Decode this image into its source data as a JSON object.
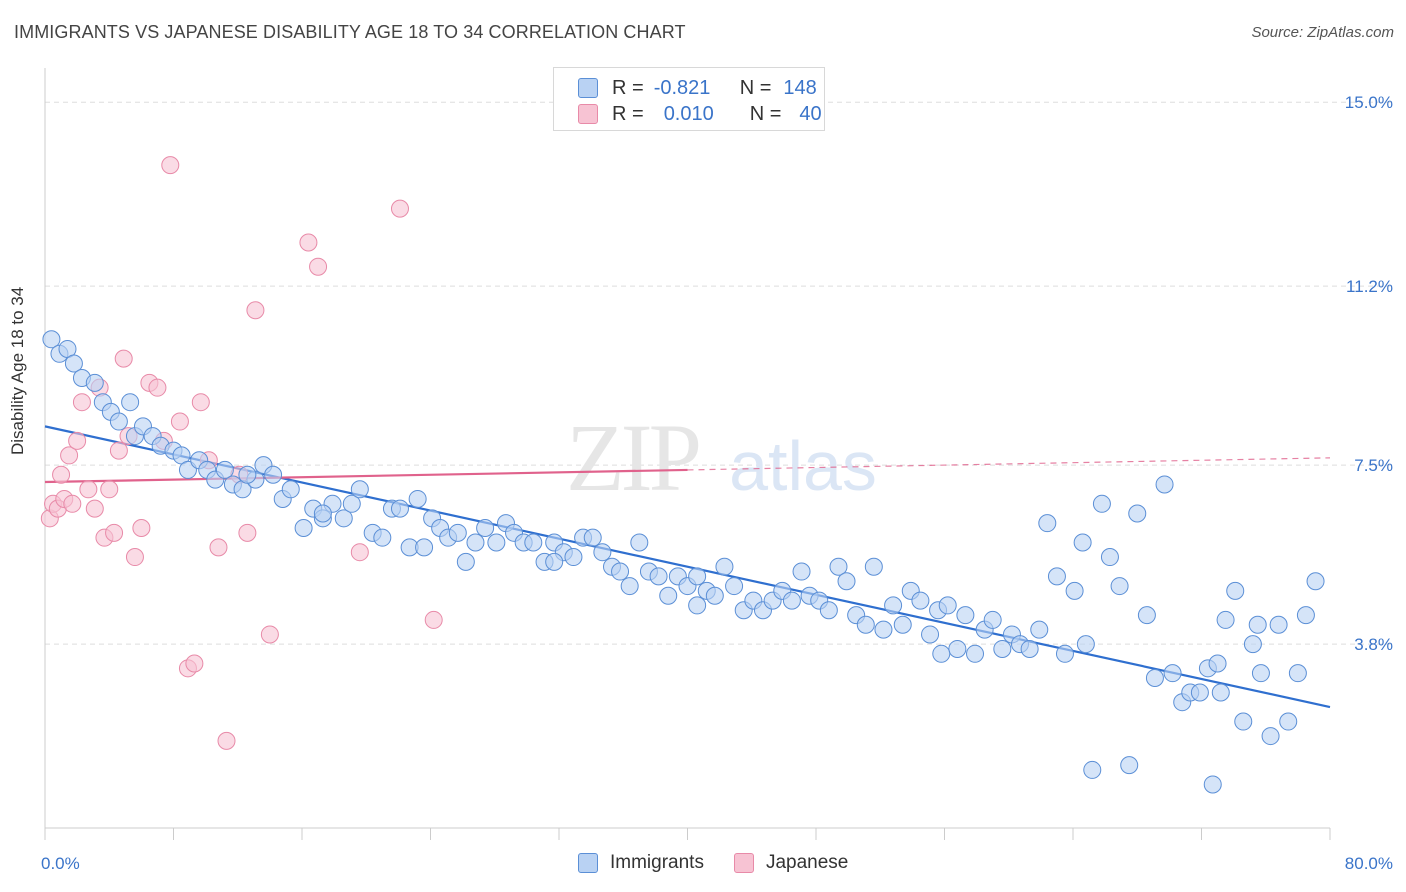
{
  "title": "IMMIGRANTS VS JAPANESE DISABILITY AGE 18 TO 34 CORRELATION CHART",
  "source": "Source: ZipAtlas.com",
  "watermark": {
    "zip": "ZIP",
    "atlas": "atlas"
  },
  "legend": {
    "immigrants": {
      "r_label": "R =",
      "r_value": "-0.821",
      "n_label": "N =",
      "n_value": "148"
    },
    "japanese": {
      "r_label": "R =",
      "r_value": "0.010",
      "n_label": "N =",
      "n_value": "40"
    }
  },
  "colors": {
    "immigrants_fill": "#b9d2f3",
    "immigrants_stroke": "#5b8fd6",
    "immigrants_line": "#2f6fcf",
    "japanese_fill": "#f7c3d3",
    "japanese_stroke": "#e88aa8",
    "japanese_line": "#e0628c",
    "axis_text": "#3a74c9",
    "grid": "#dddddd"
  },
  "chart_data": {
    "type": "scatter",
    "title": "IMMIGRANTS VS JAPANESE DISABILITY AGE 18 TO 34 CORRELATION CHART",
    "xlabel": "",
    "ylabel": "Disability Age 18 to 34",
    "xlim": [
      0,
      80
    ],
    "ylim": [
      0,
      15.5
    ],
    "x_tick_labels": [
      "0.0%",
      "80.0%"
    ],
    "y_ticks": [
      3.8,
      7.5,
      11.2,
      15.0
    ],
    "y_tick_labels": [
      "3.8%",
      "7.5%",
      "11.2%",
      "15.0%"
    ],
    "series": [
      {
        "name": "Immigrants",
        "trend": {
          "x": [
            0,
            80
          ],
          "y": [
            8.3,
            2.5
          ],
          "solid_until": 80
        },
        "points": [
          [
            0.4,
            10.1
          ],
          [
            0.9,
            9.8
          ],
          [
            1.4,
            9.9
          ],
          [
            1.8,
            9.6
          ],
          [
            2.3,
            9.3
          ],
          [
            3.1,
            9.2
          ],
          [
            3.6,
            8.8
          ],
          [
            4.1,
            8.6
          ],
          [
            4.6,
            8.4
          ],
          [
            5.3,
            8.8
          ],
          [
            5.6,
            8.1
          ],
          [
            6.1,
            8.3
          ],
          [
            6.7,
            8.1
          ],
          [
            7.2,
            7.9
          ],
          [
            8.0,
            7.8
          ],
          [
            8.5,
            7.7
          ],
          [
            8.9,
            7.4
          ],
          [
            9.6,
            7.6
          ],
          [
            10.1,
            7.4
          ],
          [
            10.6,
            7.2
          ],
          [
            11.2,
            7.4
          ],
          [
            11.7,
            7.1
          ],
          [
            12.3,
            7.0
          ],
          [
            13.1,
            7.2
          ],
          [
            13.6,
            7.5
          ],
          [
            14.2,
            7.3
          ],
          [
            14.8,
            6.8
          ],
          [
            15.3,
            7.0
          ],
          [
            16.1,
            6.2
          ],
          [
            16.7,
            6.6
          ],
          [
            17.3,
            6.4
          ],
          [
            17.9,
            6.7
          ],
          [
            18.6,
            6.4
          ],
          [
            19.1,
            6.7
          ],
          [
            19.6,
            7.0
          ],
          [
            20.4,
            6.1
          ],
          [
            21.0,
            6.0
          ],
          [
            21.6,
            6.6
          ],
          [
            22.1,
            6.6
          ],
          [
            22.7,
            5.8
          ],
          [
            23.2,
            6.8
          ],
          [
            24.1,
            6.4
          ],
          [
            24.6,
            6.2
          ],
          [
            25.1,
            6.0
          ],
          [
            25.7,
            6.1
          ],
          [
            26.2,
            5.5
          ],
          [
            26.8,
            5.9
          ],
          [
            27.4,
            6.2
          ],
          [
            28.1,
            5.9
          ],
          [
            28.7,
            6.3
          ],
          [
            29.2,
            6.1
          ],
          [
            29.8,
            5.9
          ],
          [
            30.4,
            5.9
          ],
          [
            31.1,
            5.5
          ],
          [
            31.7,
            5.9
          ],
          [
            32.3,
            5.7
          ],
          [
            32.9,
            5.6
          ],
          [
            33.5,
            6.0
          ],
          [
            34.1,
            6.0
          ],
          [
            34.7,
            5.7
          ],
          [
            35.3,
            5.4
          ],
          [
            35.8,
            5.3
          ],
          [
            36.4,
            5.0
          ],
          [
            37.0,
            5.9
          ],
          [
            37.6,
            5.3
          ],
          [
            38.2,
            5.2
          ],
          [
            38.8,
            4.8
          ],
          [
            39.4,
            5.2
          ],
          [
            40.0,
            5.0
          ],
          [
            40.6,
            5.2
          ],
          [
            41.2,
            4.9
          ],
          [
            41.7,
            4.8
          ],
          [
            42.3,
            5.4
          ],
          [
            42.9,
            5.0
          ],
          [
            43.5,
            4.5
          ],
          [
            44.1,
            4.7
          ],
          [
            44.7,
            4.5
          ],
          [
            45.3,
            4.7
          ],
          [
            45.9,
            4.9
          ],
          [
            46.5,
            4.7
          ],
          [
            47.1,
            5.3
          ],
          [
            47.6,
            4.8
          ],
          [
            48.2,
            4.7
          ],
          [
            48.8,
            4.5
          ],
          [
            49.4,
            5.4
          ],
          [
            49.9,
            5.1
          ],
          [
            50.5,
            4.4
          ],
          [
            51.1,
            4.2
          ],
          [
            51.6,
            5.4
          ],
          [
            52.2,
            4.1
          ],
          [
            52.8,
            4.6
          ],
          [
            53.4,
            4.2
          ],
          [
            53.9,
            4.9
          ],
          [
            54.5,
            4.7
          ],
          [
            55.1,
            4.0
          ],
          [
            55.6,
            4.5
          ],
          [
            56.2,
            4.6
          ],
          [
            56.8,
            3.7
          ],
          [
            57.3,
            4.4
          ],
          [
            57.9,
            3.6
          ],
          [
            58.5,
            4.1
          ],
          [
            59.0,
            4.3
          ],
          [
            59.6,
            3.7
          ],
          [
            60.2,
            4.0
          ],
          [
            60.7,
            3.8
          ],
          [
            61.3,
            3.7
          ],
          [
            61.9,
            4.1
          ],
          [
            62.4,
            6.3
          ],
          [
            63.0,
            5.2
          ],
          [
            63.5,
            3.6
          ],
          [
            64.1,
            4.9
          ],
          [
            64.6,
            5.9
          ],
          [
            65.2,
            1.2
          ],
          [
            65.8,
            6.7
          ],
          [
            66.3,
            5.6
          ],
          [
            66.9,
            5.0
          ],
          [
            67.5,
            1.3
          ],
          [
            68.0,
            6.5
          ],
          [
            68.6,
            4.4
          ],
          [
            69.1,
            3.1
          ],
          [
            69.7,
            7.1
          ],
          [
            70.2,
            3.2
          ],
          [
            70.8,
            2.6
          ],
          [
            71.3,
            2.8
          ],
          [
            71.9,
            2.8
          ],
          [
            72.4,
            3.3
          ],
          [
            73.0,
            3.4
          ],
          [
            73.5,
            4.3
          ],
          [
            74.1,
            4.9
          ],
          [
            74.6,
            2.2
          ],
          [
            75.2,
            3.8
          ],
          [
            75.7,
            3.2
          ],
          [
            76.3,
            1.9
          ],
          [
            76.8,
            4.2
          ],
          [
            77.4,
            2.2
          ],
          [
            78.0,
            3.2
          ],
          [
            78.5,
            4.4
          ],
          [
            79.1,
            5.1
          ],
          [
            73.2,
            2.8
          ],
          [
            72.7,
            0.9
          ],
          [
            75.5,
            4.2
          ],
          [
            64.8,
            3.8
          ],
          [
            55.8,
            3.6
          ],
          [
            40.6,
            4.6
          ],
          [
            31.7,
            5.5
          ],
          [
            23.6,
            5.8
          ],
          [
            17.3,
            6.5
          ],
          [
            12.6,
            7.3
          ]
        ]
      },
      {
        "name": "Japanese",
        "trend": {
          "x": [
            0,
            80
          ],
          "y": [
            7.15,
            7.65
          ],
          "solid_until": 40
        },
        "points": [
          [
            0.3,
            6.4
          ],
          [
            0.5,
            6.7
          ],
          [
            0.8,
            6.6
          ],
          [
            1.0,
            7.3
          ],
          [
            1.2,
            6.8
          ],
          [
            1.5,
            7.7
          ],
          [
            1.7,
            6.7
          ],
          [
            2.0,
            8.0
          ],
          [
            2.3,
            8.8
          ],
          [
            2.7,
            7.0
          ],
          [
            3.1,
            6.6
          ],
          [
            3.4,
            9.1
          ],
          [
            3.7,
            6.0
          ],
          [
            4.0,
            7.0
          ],
          [
            4.3,
            6.1
          ],
          [
            4.6,
            7.8
          ],
          [
            4.9,
            9.7
          ],
          [
            5.2,
            8.1
          ],
          [
            5.6,
            5.6
          ],
          [
            6.0,
            6.2
          ],
          [
            6.5,
            9.2
          ],
          [
            7.0,
            9.1
          ],
          [
            7.4,
            8.0
          ],
          [
            7.8,
            13.7
          ],
          [
            8.4,
            8.4
          ],
          [
            8.9,
            3.3
          ],
          [
            9.3,
            3.4
          ],
          [
            9.7,
            8.8
          ],
          [
            10.2,
            7.6
          ],
          [
            10.8,
            5.8
          ],
          [
            11.3,
            1.8
          ],
          [
            12.1,
            7.3
          ],
          [
            12.6,
            6.1
          ],
          [
            13.1,
            10.7
          ],
          [
            14.0,
            4.0
          ],
          [
            16.4,
            12.1
          ],
          [
            17.0,
            11.6
          ],
          [
            19.6,
            5.7
          ],
          [
            22.1,
            12.8
          ],
          [
            24.2,
            4.3
          ]
        ]
      }
    ]
  }
}
